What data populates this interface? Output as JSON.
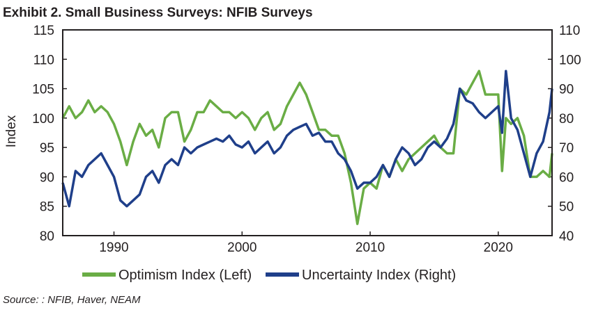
{
  "title": "Exhibit 2. Small Business Surveys: NFIB Surveys",
  "source": "Source: : NFIB, Haver, NEAM",
  "chart_data": {
    "type": "line",
    "xlim": [
      1986,
      2024.2
    ],
    "x_ticks": [
      1990,
      2000,
      2010,
      2020
    ],
    "ylabel_left": "Index",
    "ylim_left": [
      80,
      115
    ],
    "yticks_left": [
      80,
      85,
      90,
      95,
      100,
      105,
      110,
      115
    ],
    "ylim_right": [
      40,
      110
    ],
    "yticks_right": [
      40,
      50,
      60,
      70,
      80,
      90,
      100,
      110
    ],
    "grid": false,
    "legend_position": "bottom",
    "series": [
      {
        "name": "Optimism Index (Left)",
        "axis": "left",
        "color": "#6aad45",
        "points": [
          [
            1986.0,
            100
          ],
          [
            1986.5,
            102
          ],
          [
            1987.0,
            100
          ],
          [
            1987.5,
            101
          ],
          [
            1988.0,
            103
          ],
          [
            1988.5,
            101
          ],
          [
            1989.0,
            102
          ],
          [
            1989.5,
            101
          ],
          [
            1990.0,
            99
          ],
          [
            1990.5,
            96
          ],
          [
            1991.0,
            92
          ],
          [
            1991.5,
            96
          ],
          [
            1992.0,
            99
          ],
          [
            1992.5,
            97
          ],
          [
            1993.0,
            98
          ],
          [
            1993.5,
            95
          ],
          [
            1994.0,
            100
          ],
          [
            1994.5,
            101
          ],
          [
            1995.0,
            101
          ],
          [
            1995.5,
            96
          ],
          [
            1996.0,
            98
          ],
          [
            1996.5,
            101
          ],
          [
            1997.0,
            101
          ],
          [
            1997.5,
            103
          ],
          [
            1998.0,
            102
          ],
          [
            1998.5,
            101
          ],
          [
            1999.0,
            101
          ],
          [
            1999.5,
            100
          ],
          [
            2000.0,
            101
          ],
          [
            2000.5,
            100
          ],
          [
            2001.0,
            98
          ],
          [
            2001.5,
            100
          ],
          [
            2002.0,
            101
          ],
          [
            2002.5,
            98
          ],
          [
            2003.0,
            99
          ],
          [
            2003.5,
            102
          ],
          [
            2004.0,
            104
          ],
          [
            2004.5,
            106
          ],
          [
            2005.0,
            104
          ],
          [
            2005.5,
            101
          ],
          [
            2006.0,
            98
          ],
          [
            2006.5,
            98
          ],
          [
            2007.0,
            97
          ],
          [
            2007.5,
            97
          ],
          [
            2008.0,
            94
          ],
          [
            2008.5,
            89
          ],
          [
            2009.0,
            82
          ],
          [
            2009.5,
            88
          ],
          [
            2010.0,
            89
          ],
          [
            2010.5,
            88
          ],
          [
            2011.0,
            92
          ],
          [
            2011.5,
            90
          ],
          [
            2012.0,
            93
          ],
          [
            2012.5,
            91
          ],
          [
            2013.0,
            93
          ],
          [
            2013.5,
            94
          ],
          [
            2014.0,
            95
          ],
          [
            2014.5,
            96
          ],
          [
            2015.0,
            97
          ],
          [
            2015.5,
            95
          ],
          [
            2016.0,
            94
          ],
          [
            2016.5,
            94
          ],
          [
            2017.0,
            105
          ],
          [
            2017.5,
            104
          ],
          [
            2018.0,
            106
          ],
          [
            2018.5,
            108
          ],
          [
            2019.0,
            104
          ],
          [
            2019.5,
            104
          ],
          [
            2020.0,
            104
          ],
          [
            2020.3,
            91
          ],
          [
            2020.6,
            100
          ],
          [
            2021.0,
            99
          ],
          [
            2021.5,
            100
          ],
          [
            2022.0,
            97
          ],
          [
            2022.5,
            90
          ],
          [
            2023.0,
            90
          ],
          [
            2023.5,
            91
          ],
          [
            2024.0,
            90
          ],
          [
            2024.2,
            94
          ]
        ]
      },
      {
        "name": "Uncertainty Index (Right)",
        "axis": "right",
        "color": "#1f3f8a",
        "points": [
          [
            1986.0,
            58
          ],
          [
            1986.5,
            50
          ],
          [
            1987.0,
            62
          ],
          [
            1987.5,
            60
          ],
          [
            1988.0,
            64
          ],
          [
            1988.5,
            66
          ],
          [
            1989.0,
            68
          ],
          [
            1989.5,
            64
          ],
          [
            1990.0,
            60
          ],
          [
            1990.5,
            52
          ],
          [
            1991.0,
            50
          ],
          [
            1991.5,
            52
          ],
          [
            1992.0,
            54
          ],
          [
            1992.5,
            60
          ],
          [
            1993.0,
            62
          ],
          [
            1993.5,
            58
          ],
          [
            1994.0,
            64
          ],
          [
            1994.5,
            66
          ],
          [
            1995.0,
            64
          ],
          [
            1995.5,
            70
          ],
          [
            1996.0,
            68
          ],
          [
            1996.5,
            70
          ],
          [
            1997.0,
            71
          ],
          [
            1997.5,
            72
          ],
          [
            1998.0,
            73
          ],
          [
            1998.5,
            72
          ],
          [
            1999.0,
            74
          ],
          [
            1999.5,
            71
          ],
          [
            2000.0,
            70
          ],
          [
            2000.5,
            72
          ],
          [
            2001.0,
            68
          ],
          [
            2001.5,
            70
          ],
          [
            2002.0,
            72
          ],
          [
            2002.5,
            68
          ],
          [
            2003.0,
            70
          ],
          [
            2003.5,
            74
          ],
          [
            2004.0,
            76
          ],
          [
            2004.5,
            77
          ],
          [
            2005.0,
            78
          ],
          [
            2005.5,
            74
          ],
          [
            2006.0,
            75
          ],
          [
            2006.5,
            72
          ],
          [
            2007.0,
            72
          ],
          [
            2007.5,
            68
          ],
          [
            2008.0,
            66
          ],
          [
            2008.5,
            62
          ],
          [
            2009.0,
            56
          ],
          [
            2009.5,
            58
          ],
          [
            2010.0,
            58
          ],
          [
            2010.5,
            60
          ],
          [
            2011.0,
            64
          ],
          [
            2011.5,
            60
          ],
          [
            2012.0,
            66
          ],
          [
            2012.5,
            70
          ],
          [
            2013.0,
            68
          ],
          [
            2013.5,
            64
          ],
          [
            2014.0,
            66
          ],
          [
            2014.5,
            70
          ],
          [
            2015.0,
            72
          ],
          [
            2015.5,
            70
          ],
          [
            2016.0,
            73
          ],
          [
            2016.5,
            78
          ],
          [
            2017.0,
            90
          ],
          [
            2017.5,
            86
          ],
          [
            2018.0,
            85
          ],
          [
            2018.5,
            82
          ],
          [
            2019.0,
            80
          ],
          [
            2019.5,
            82
          ],
          [
            2020.0,
            84
          ],
          [
            2020.3,
            75
          ],
          [
            2020.6,
            96
          ],
          [
            2021.0,
            80
          ],
          [
            2021.5,
            76
          ],
          [
            2022.0,
            68
          ],
          [
            2022.5,
            60
          ],
          [
            2023.0,
            68
          ],
          [
            2023.5,
            72
          ],
          [
            2024.0,
            82
          ],
          [
            2024.2,
            90
          ]
        ]
      }
    ]
  }
}
